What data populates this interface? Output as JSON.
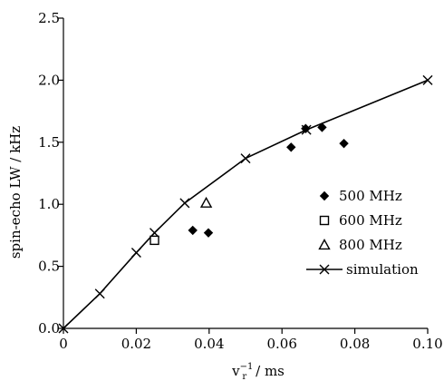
{
  "chart_data": {
    "type": "scatter",
    "xlabel_main": "v",
    "xlabel_sub": "r",
    "xlabel_sup": "−1",
    "xlabel_rest": "/ ms",
    "ylabel": "spin-echo LW / kHz",
    "xlim": [
      0,
      0.1
    ],
    "ylim": [
      0,
      2.5
    ],
    "x_ticks": [
      0,
      0.02,
      0.04,
      0.06,
      0.08,
      0.1
    ],
    "x_tick_labels": [
      "0",
      "0.02",
      "0.04",
      "0.06",
      "0.08",
      "0.10"
    ],
    "y_ticks": [
      0,
      0.5,
      1.0,
      1.5,
      2.0,
      2.5
    ],
    "y_tick_labels": [
      "0.0",
      "0.5",
      "1.0",
      "1.5",
      "2.0",
      "2.5"
    ],
    "grid": false,
    "legend_position": "right-center",
    "series": [
      {
        "name": "500 MHz",
        "marker": "diamond-filled",
        "points": [
          [
            0.0355,
            0.79
          ],
          [
            0.0398,
            0.77
          ],
          [
            0.0625,
            1.46
          ],
          [
            0.0665,
            1.61
          ],
          [
            0.071,
            1.62
          ],
          [
            0.077,
            1.49
          ]
        ]
      },
      {
        "name": "600 MHz",
        "marker": "square-open",
        "points": [
          [
            0.025,
            0.71
          ]
        ]
      },
      {
        "name": "800 MHz",
        "marker": "triangle-open",
        "points": [
          [
            0.0392,
            1.01
          ]
        ]
      },
      {
        "name": "simulation",
        "marker": "x-line",
        "points": [
          [
            0,
            0
          ],
          [
            0.01,
            0.28
          ],
          [
            0.02,
            0.61
          ],
          [
            0.025,
            0.77
          ],
          [
            0.0333,
            1.01
          ],
          [
            0.05,
            1.37
          ],
          [
            0.0667,
            1.6
          ],
          [
            0.1,
            2.0
          ]
        ]
      }
    ]
  }
}
